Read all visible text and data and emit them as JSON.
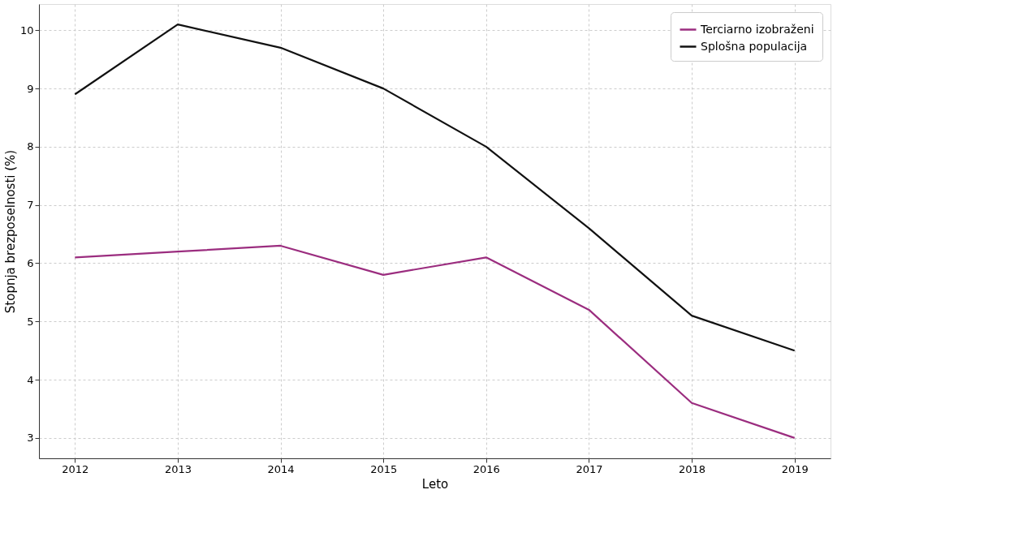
{
  "chart_data": {
    "type": "line",
    "xlabel": "Leto",
    "ylabel": "Stopnja brezposelnosti (%)",
    "x": [
      2012,
      2013,
      2014,
      2015,
      2016,
      2017,
      2018,
      2019
    ],
    "series": [
      {
        "name": "Terciarno izobraženi",
        "color": "#9b2d7f",
        "values": [
          6.1,
          6.2,
          6.3,
          5.8,
          6.1,
          5.2,
          3.6,
          3.0
        ]
      },
      {
        "name": "Splošna populacija",
        "color": "#111111",
        "values": [
          8.9,
          10.1,
          9.7,
          9.0,
          8.0,
          6.6,
          5.1,
          4.5
        ]
      }
    ],
    "xlim": [
      2011.65,
      2019.35
    ],
    "ylim": [
      2.65,
      10.45
    ],
    "xticks": [
      2012,
      2013,
      2014,
      2015,
      2016,
      2017,
      2018,
      2019
    ],
    "yticks": [
      3,
      4,
      5,
      6,
      7,
      8,
      9,
      10
    ],
    "grid": true,
    "legend": "top right",
    "line_style": "solid",
    "marker": "none"
  }
}
